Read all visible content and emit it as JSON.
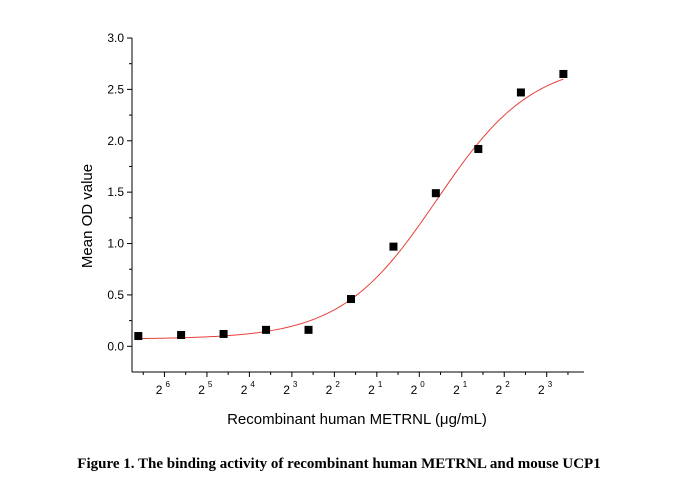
{
  "caption": "Figure 1. The binding activity of recombinant human METRNL and mouse UCP1",
  "chart_data": {
    "type": "scatter",
    "title": "",
    "xlabel": "Recombinant human METRNL (μg/mL)",
    "ylabel": "Mean OD value",
    "x_scale": "log2",
    "x_tick_labels": [
      {
        "base": "2",
        "exp": "-6",
        "exp_shown": "6",
        "value": 0.015625
      },
      {
        "base": "2",
        "exp": "-5",
        "exp_shown": "5",
        "value": 0.03125
      },
      {
        "base": "2",
        "exp": "-4",
        "exp_shown": "4",
        "value": 0.0625
      },
      {
        "base": "2",
        "exp": "-3",
        "exp_shown": "3",
        "value": 0.125
      },
      {
        "base": "2",
        "exp": "-2",
        "exp_shown": "2",
        "value": 0.25
      },
      {
        "base": "2",
        "exp": "-1",
        "exp_shown": "1",
        "value": 0.5
      },
      {
        "base": "2",
        "exp": "0",
        "exp_shown": "0",
        "value": 1
      },
      {
        "base": "2",
        "exp": "1",
        "exp_shown": "1",
        "value": 2
      },
      {
        "base": "2",
        "exp": "2",
        "exp_shown": "2",
        "value": 4
      },
      {
        "base": "2",
        "exp": "3",
        "exp_shown": "3",
        "value": 8
      }
    ],
    "xlim": [
      0.0092,
      14.7
    ],
    "ylim": [
      -0.25,
      3.0
    ],
    "y_ticks": [
      "0.0",
      "0.5",
      "1.0",
      "1.5",
      "2.0",
      "2.5",
      "3.0"
    ],
    "series": [
      {
        "marker": "square",
        "color": "#000000",
        "points": [
          {
            "x": 0.0102,
            "y": 0.1
          },
          {
            "x": 0.0205,
            "y": 0.11
          },
          {
            "x": 0.041,
            "y": 0.12
          },
          {
            "x": 0.082,
            "y": 0.16
          },
          {
            "x": 0.164,
            "y": 0.16
          },
          {
            "x": 0.328,
            "y": 0.46
          },
          {
            "x": 0.656,
            "y": 0.97
          },
          {
            "x": 1.31,
            "y": 1.49
          },
          {
            "x": 2.62,
            "y": 1.92
          },
          {
            "x": 5.25,
            "y": 2.47
          },
          {
            "x": 10.5,
            "y": 2.65
          }
        ]
      }
    ],
    "fit": {
      "type": "4PL",
      "color": "#e8413c",
      "bottom": 0.07,
      "top": 2.78,
      "ec50": 1.33,
      "hill": 1.28
    },
    "grid": false,
    "legend": "none"
  }
}
